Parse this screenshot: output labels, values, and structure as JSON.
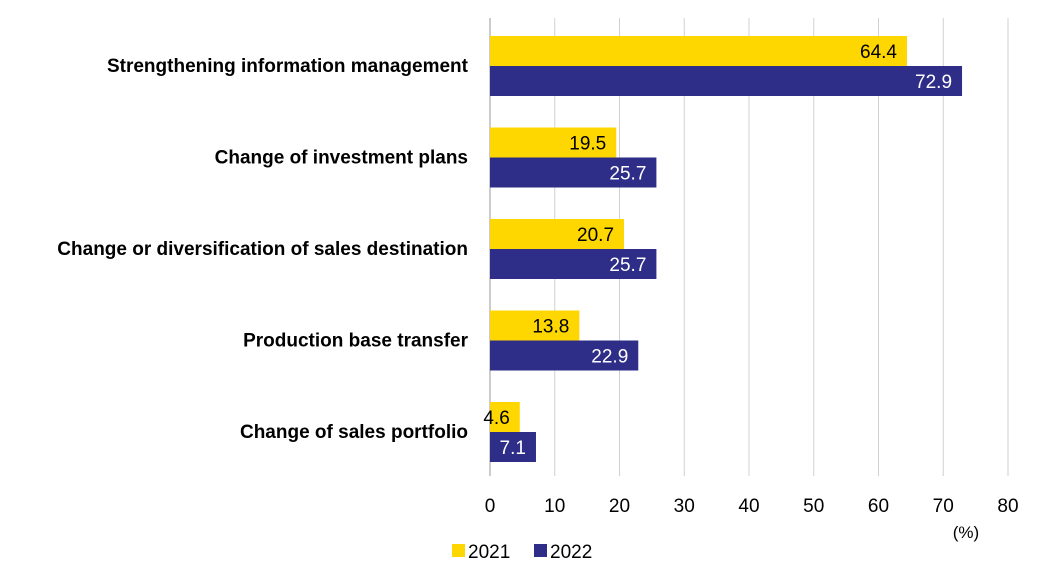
{
  "chart_data": {
    "type": "bar",
    "orientation": "horizontal",
    "categories": [
      "Strengthening information management",
      "Change of investment plans",
      "Change or diversification of sales destination",
      "Production base transfer",
      "Change of sales portfolio"
    ],
    "series": [
      {
        "name": "2021",
        "color": "#FFD700",
        "values": [
          64.4,
          19.5,
          20.7,
          13.8,
          4.6
        ]
      },
      {
        "name": "2022",
        "color": "#2E2D88",
        "values": [
          72.9,
          25.7,
          25.7,
          22.9,
          7.1
        ]
      }
    ],
    "xlim": [
      0,
      80
    ],
    "xticks": [
      "0",
      "10",
      "20",
      "30",
      "40",
      "50",
      "60",
      "70",
      "80"
    ],
    "x_unit": "(%)",
    "grid": "vertical",
    "legend_position": "bottom-center"
  }
}
